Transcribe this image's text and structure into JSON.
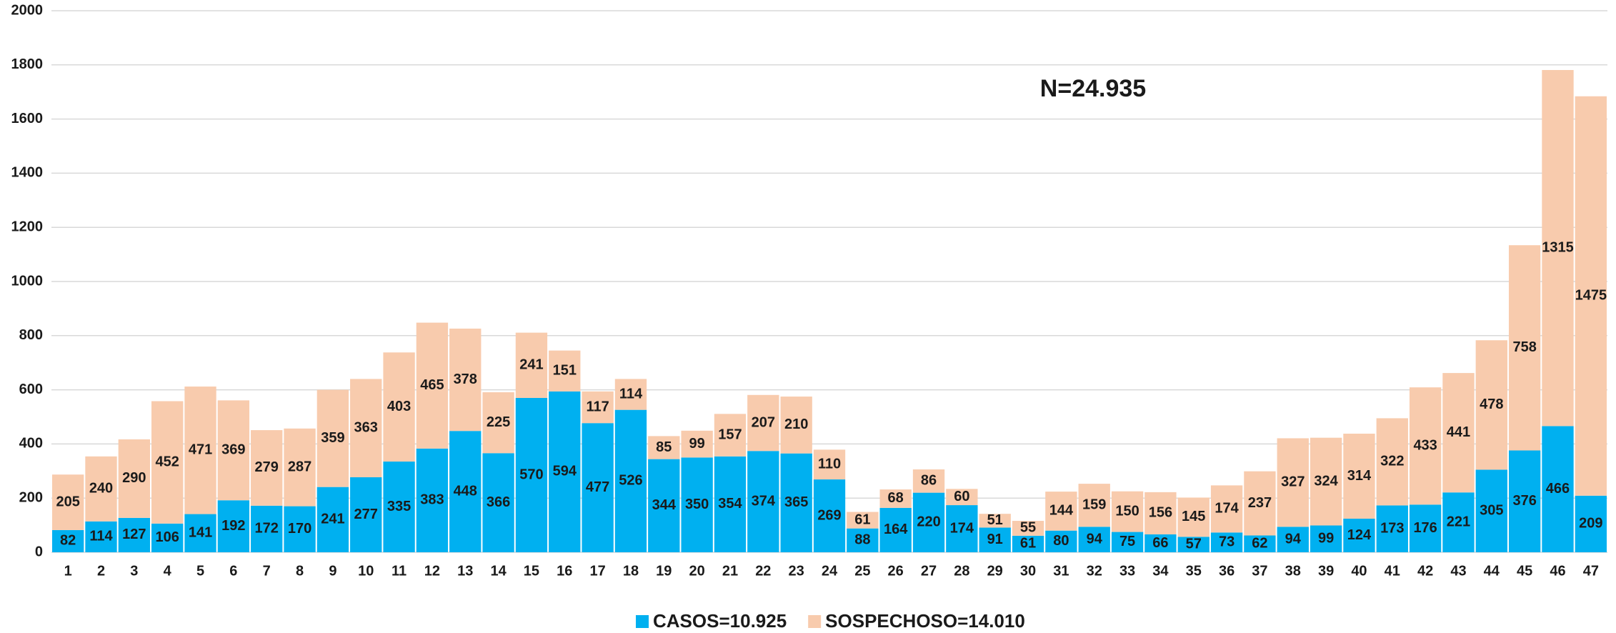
{
  "chart_data": {
    "type": "stacked_bar",
    "annotation": "N=24.935",
    "categories": [
      "1",
      "2",
      "3",
      "4",
      "5",
      "6",
      "7",
      "8",
      "9",
      "10",
      "11",
      "12",
      "13",
      "14",
      "15",
      "16",
      "17",
      "18",
      "19",
      "20",
      "21",
      "22",
      "23",
      "24",
      "25",
      "26",
      "27",
      "28",
      "29",
      "30",
      "31",
      "32",
      "33",
      "34",
      "35",
      "36",
      "37",
      "38",
      "39",
      "40",
      "41",
      "42",
      "43",
      "44",
      "45",
      "46",
      "47"
    ],
    "series": [
      {
        "name": "CASOS=10.925",
        "color": "#00b0f0",
        "values": [
          82,
          114,
          127,
          106,
          141,
          192,
          172,
          170,
          241,
          277,
          335,
          383,
          448,
          366,
          570,
          594,
          477,
          526,
          344,
          350,
          354,
          374,
          365,
          269,
          88,
          164,
          220,
          174,
          91,
          61,
          80,
          94,
          75,
          66,
          57,
          73,
          62,
          94,
          99,
          124,
          173,
          176,
          221,
          305,
          376,
          466,
          209
        ]
      },
      {
        "name": "SOSPECHOSO=14.010",
        "color": "#f8cbad",
        "values": [
          205,
          240,
          290,
          452,
          471,
          369,
          279,
          287,
          359,
          363,
          403,
          465,
          378,
          225,
          241,
          151,
          117,
          114,
          85,
          99,
          157,
          207,
          210,
          110,
          61,
          68,
          86,
          60,
          51,
          55,
          144,
          159,
          150,
          156,
          145,
          174,
          237,
          327,
          324,
          314,
          322,
          433,
          441,
          478,
          758,
          1315,
          1475
        ]
      }
    ],
    "ylim": [
      0,
      2000
    ],
    "yticks": [
      0,
      200,
      400,
      600,
      800,
      1000,
      1200,
      1400,
      1600,
      1800,
      2000
    ],
    "grid": true,
    "legend": "bottom"
  }
}
